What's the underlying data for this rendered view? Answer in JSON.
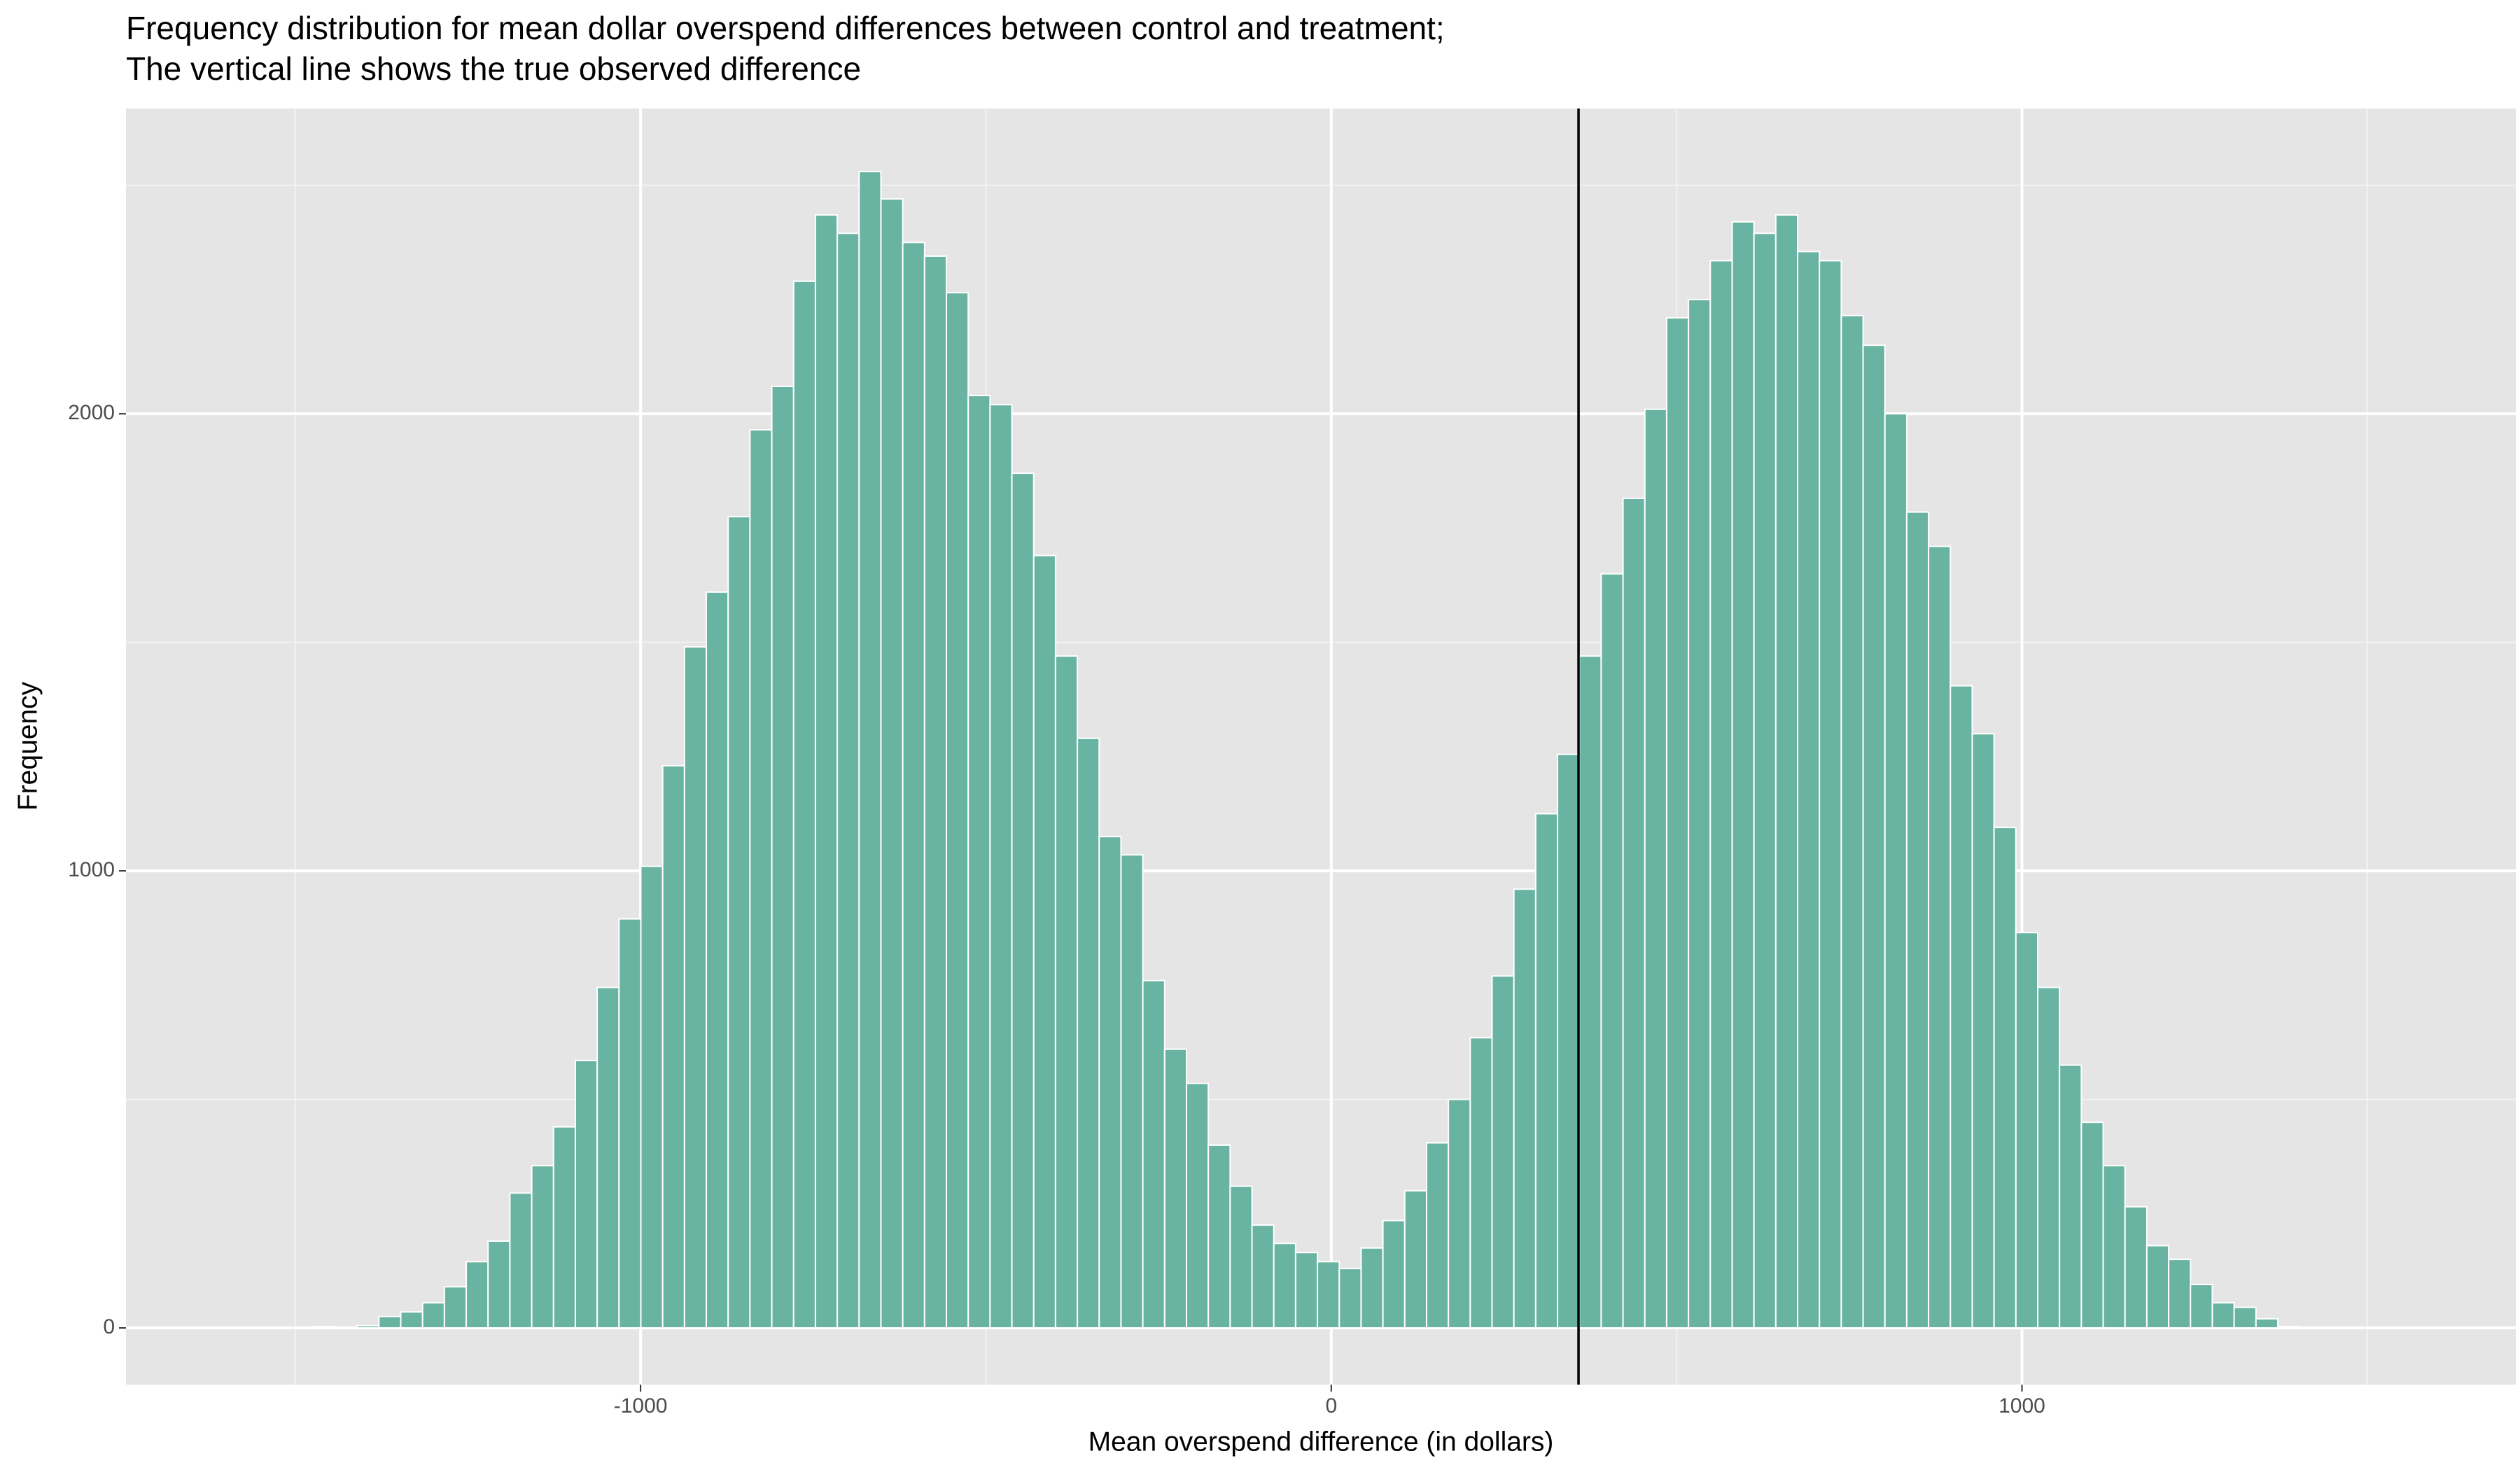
{
  "chart_data": {
    "type": "histogram",
    "title": [
      "Frequency distribution for mean dollar overspend differences between control and treatment;",
      "The vertical line shows the true observed difference"
    ],
    "x_label": "Mean overspend difference (in dollars)",
    "y_label": "Frequency",
    "color": "#69b3a2",
    "bins": [
      -1600,
      -1568.4,
      -1536.8,
      -1505.2,
      -1473.6,
      -1442,
      -1410.4,
      -1378.8,
      -1347.2,
      -1315.6,
      -1284,
      -1252.4,
      -1220.8,
      -1189.2,
      -1157.6,
      -1126,
      -1094.4,
      -1062.8,
      -1031.2,
      -999.6,
      -968,
      -936.4,
      -904.8,
      -873.2,
      -841.6,
      -810,
      -778.4,
      -746.8,
      -715.2,
      -683.6,
      -652,
      -620.4,
      -588.8,
      -557.2,
      -525.6,
      -494,
      -462.4,
      -430.8,
      -399.2,
      -367.6,
      -336,
      -304.4,
      -272.8,
      -241.2,
      -209.6,
      -178,
      -146.4,
      -114.8,
      -83.2,
      -51.6,
      -20,
      11.6,
      43.2,
      74.8,
      106.4,
      138,
      169.6,
      201.2,
      232.8,
      264.4,
      296,
      327.6,
      359.2,
      390.8,
      422.4,
      454,
      485.6,
      517.2,
      548.8,
      580.4,
      612,
      643.6,
      675.2,
      706.8,
      738.4,
      770,
      801.6,
      833.2,
      864.8,
      896.4,
      928,
      959.6,
      991.2,
      1022.8,
      1054.4,
      1086,
      1117.6,
      1149.2,
      1180.8,
      1212.4,
      1244,
      1275.6,
      1307.2,
      1338.8,
      1370.4,
      1402,
      1433.6,
      1465.2,
      1496.8,
      1528.4,
      1560
    ],
    "values": [
      0,
      0,
      0,
      0,
      3,
      0,
      5,
      25,
      35,
      55,
      90,
      145,
      190,
      295,
      355,
      440,
      585,
      745,
      895,
      1010,
      1230,
      1490,
      1610,
      1775,
      1965,
      2060,
      2290,
      2435,
      2395,
      2530,
      2470,
      2375,
      2345,
      2265,
      2040,
      2020,
      1870,
      1690,
      1470,
      1290,
      1075,
      1035,
      760,
      610,
      535,
      400,
      310,
      225,
      185,
      165,
      145,
      130,
      175,
      235,
      300,
      405,
      500,
      635,
      770,
      960,
      1125,
      1255,
      1470,
      1650,
      1815,
      2010,
      2210,
      2250,
      2335,
      2420,
      2395,
      2435,
      2355,
      2335,
      2215,
      2150,
      2000,
      1785,
      1710,
      1405,
      1300,
      1095,
      865,
      745,
      575,
      450,
      355,
      265,
      180,
      150,
      95,
      55,
      45,
      20,
      3,
      0,
      0,
      0,
      0,
      0
    ],
    "vline": 358,
    "xlim": [
      -1745,
      1715
    ],
    "xticks": [
      -1000,
      0,
      1000
    ],
    "minor_xticks": [
      -1500,
      -500,
      500,
      1500
    ],
    "ylim": [
      -124,
      2668
    ],
    "yticks": [
      0,
      1000,
      2000
    ],
    "minor_yticks": [
      500,
      1500,
      2500
    ],
    "grid": true
  }
}
